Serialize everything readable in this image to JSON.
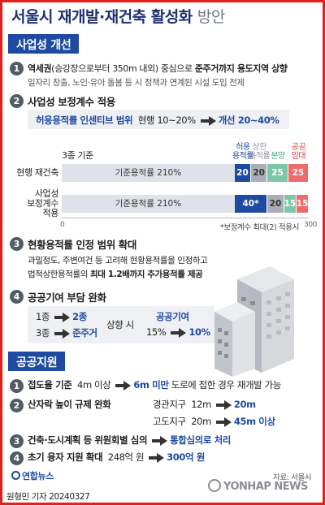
{
  "title": "서울시 재개발·재건축 활성화",
  "title_sub": "방안",
  "section1": {
    "heading": "사업성 개선",
    "item1": {
      "num": "1",
      "line1_a": "역세권",
      "line1_b": "(승강장으로부터 350m 내외) 중심으로",
      "line1_c": "준주거까지 용도지역 상향",
      "line2": "일자리 창출, 노인·유아 돌봄 등 시 정책과 연계된 시설 도입 전제"
    },
    "item2": {
      "num": "2",
      "heading": "사업성 보정계수 적용",
      "incentive_label": "허용용적률 인센티브 범위",
      "current": "현행 10~20%",
      "improved": "개선 20~40%"
    },
    "chart_data": {
      "type": "bar",
      "title": "3종 기준",
      "categories": [
        "현행 재건축",
        "사업성 보정계수 적용"
      ],
      "category_display": [
        "현행 재건축",
        "사업성\n보정계수\n적용"
      ],
      "legend": [
        "허용\n용적률",
        "상한\n용적률",
        "분양",
        "공공\n임대"
      ],
      "base_label": "기준용적률 210%",
      "series": [
        {
          "name": "기준용적률",
          "values": [
            210,
            210
          ],
          "labels": [
            "기준용적률 210%",
            "기준용적률 210%"
          ]
        },
        {
          "name": "허용용적률",
          "values": [
            20,
            40
          ],
          "labels": [
            "20",
            "40*"
          ]
        },
        {
          "name": "상한용적률",
          "values": [
            20,
            20
          ],
          "labels": [
            "20",
            "20"
          ]
        },
        {
          "name": "분양",
          "values": [
            25,
            15
          ],
          "labels": [
            "25",
            "15"
          ]
        },
        {
          "name": "공공임대",
          "values": [
            25,
            15
          ],
          "labels": [
            "25",
            "15"
          ]
        }
      ],
      "xlim": [
        0,
        300
      ],
      "tick_labels": [
        "0",
        "300"
      ],
      "note": "*보정계수 최대(2) 적용시",
      "colors": {
        "base": "#dfe2e8",
        "allowed": "#1f4aa1",
        "upper": "#a9aeb8",
        "sale": "#7dc6a7",
        "rental": "#ef6a6a"
      }
    },
    "item3": {
      "num": "3",
      "heading": "현황용적률 인정 범위 확대",
      "line1": "과밀정도, 주변여건 등 고려해 현황용적률을 인정하고",
      "line2_a": "법적상한용적률의",
      "line2_b": "최대 1.2배까지 추가용적률 제공"
    },
    "item4": {
      "num": "4",
      "heading": "공공기여 부담 완화",
      "row1_from": "1종",
      "row1_to": "2종",
      "row2_from": "3종",
      "row2_to": "준주거",
      "middle": "상향 시",
      "contrib_label": "공공기여",
      "contrib_from": "15%",
      "contrib_to": "10%"
    }
  },
  "section2": {
    "heading": "공공지원",
    "item1": {
      "num": "1",
      "label": "접도율 기준",
      "from": "4m 이상",
      "to": "6m 미만",
      "rest": "도로에 접한 경우 재개발 가능"
    },
    "item2": {
      "num": "2",
      "label": "산자락 높이 규제 완화",
      "r1_name": "경관지구",
      "r1_from": "12m",
      "r1_to": "20m",
      "r2_name": "고도지구",
      "r2_from": "20m",
      "r2_to": "45m 이상"
    },
    "item3": {
      "num": "3",
      "label": "건축·도시계획 등 위원회별 심의",
      "to": "통합심의로 처리"
    },
    "item4": {
      "num": "4",
      "label": "초기 융자 지원 확대",
      "from": "248억 원",
      "to": "300억 원"
    }
  },
  "footer": {
    "logo": "연합뉴스",
    "source": "자료: 서울시",
    "byline": "원형민 기자",
    "date": "20240327",
    "watermark": "YONHAP NEWS"
  }
}
